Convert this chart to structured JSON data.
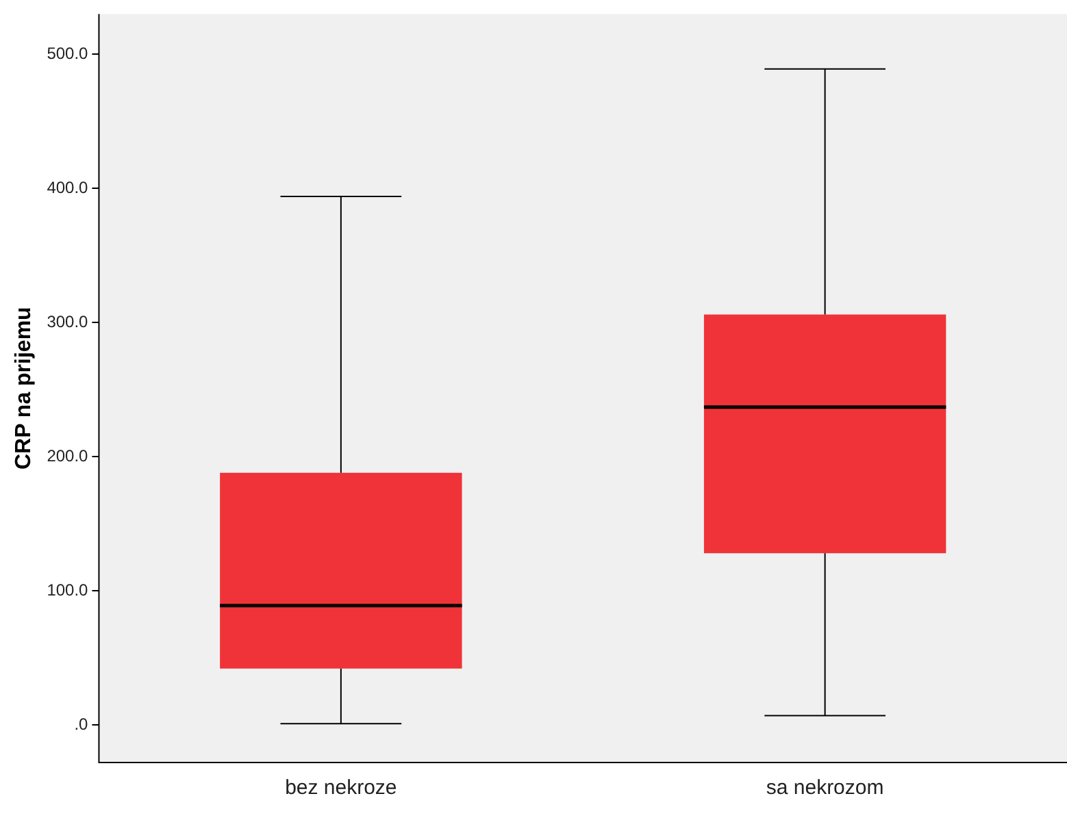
{
  "chart_data": {
    "type": "box",
    "ylabel": "CRP na prijemu",
    "categories": [
      "bez nekroze",
      "sa nekrozom"
    ],
    "color": "#ef3338",
    "boxes": [
      {
        "low": 1,
        "q1": 42,
        "median": 89,
        "q3": 188,
        "high": 394
      },
      {
        "low": 7,
        "q1": 128,
        "median": 237,
        "q3": 306,
        "high": 489
      }
    ],
    "ylim": [
      -28,
      530
    ],
    "yticks": [
      {
        "value": 0,
        "label": ".0"
      },
      {
        "value": 100,
        "label": "100.0"
      },
      {
        "value": 200,
        "label": "200.0"
      },
      {
        "value": 300,
        "label": "300.0"
      },
      {
        "value": 400,
        "label": "400.0"
      },
      {
        "value": 500,
        "label": "500.0"
      }
    ],
    "grid": false,
    "legend": false
  }
}
